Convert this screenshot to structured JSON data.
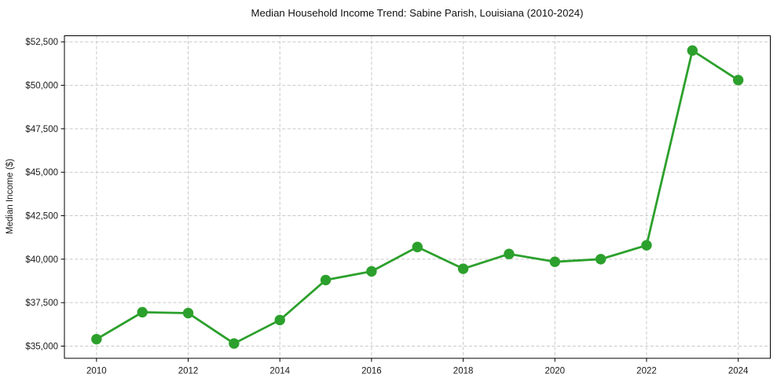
{
  "colors": {
    "line": "#2ca02c",
    "marker": "#2ca02c",
    "grid": "#c9c9c9",
    "spine": "#000000",
    "text": "#1a1a1a",
    "background": "#ffffff"
  },
  "chart_data": {
    "type": "line",
    "title": "Median Household Income Trend: Sabine Parish, Louisiana (2010-2024)",
    "xlabel": "",
    "ylabel": "Median Income ($)",
    "x": [
      2010,
      2011,
      2012,
      2013,
      2014,
      2015,
      2016,
      2017,
      2018,
      2019,
      2020,
      2021,
      2022,
      2023,
      2024
    ],
    "values": [
      35400,
      36950,
      36900,
      35150,
      36500,
      38800,
      39300,
      40700,
      39450,
      40300,
      39850,
      40000,
      40800,
      52000,
      50300
    ],
    "xticks": {
      "values": [
        2010,
        2012,
        2014,
        2016,
        2018,
        2020,
        2022,
        2024
      ],
      "labels": [
        "2010",
        "2012",
        "2014",
        "2016",
        "2018",
        "2020",
        "2022",
        "2024"
      ]
    },
    "yticks": {
      "values": [
        35000,
        37500,
        40000,
        42500,
        45000,
        47500,
        50000,
        52500
      ],
      "labels": [
        "$35,000",
        "$37,500",
        "$40,000",
        "$42,500",
        "$45,000",
        "$47,500",
        "$50,000",
        "$52,500"
      ]
    },
    "xlim": [
      2009.3,
      2024.7
    ],
    "ylim": [
      34300,
      52850
    ],
    "grid": true,
    "grid_style": "dashed",
    "legend": false,
    "marker": "circle"
  }
}
